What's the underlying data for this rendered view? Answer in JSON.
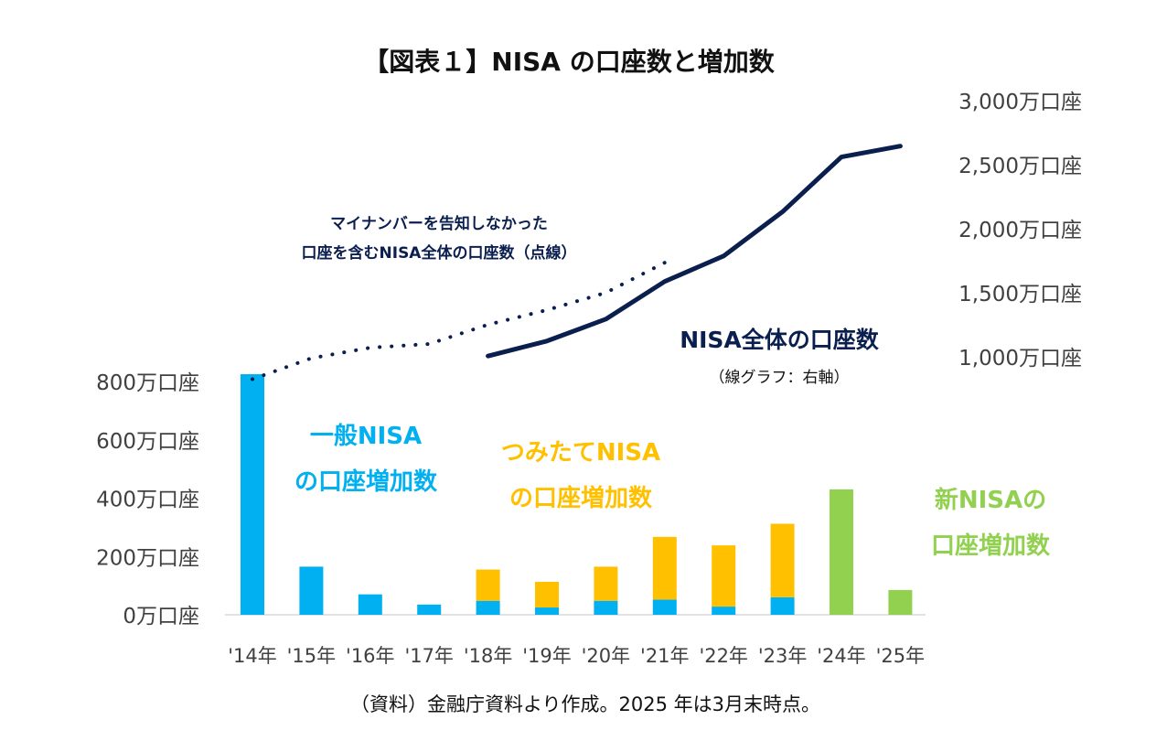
{
  "chart_data": {
    "type": "bar",
    "title": "【図表１】NISA の口座数と増加数",
    "categories": [
      "'14年",
      "'15年",
      "'16年",
      "'17年",
      "'18年",
      "'19年",
      "'20年",
      "'21年",
      "'22年",
      "'23年",
      "'24年",
      "'25年"
    ],
    "series": [
      {
        "name": "一般NISA の口座増加数",
        "color": "#00B0F0",
        "values": [
          825,
          165,
          70,
          35,
          48,
          25,
          48,
          52,
          28,
          60,
          null,
          null
        ]
      },
      {
        "name": "つみたてNISA の口座増加数",
        "color": "#FFC000",
        "values": [
          null,
          null,
          null,
          null,
          107,
          88,
          117,
          215,
          210,
          252,
          null,
          null
        ]
      },
      {
        "name": "新NISAの口座増加数",
        "color": "#92D050",
        "values": [
          null,
          null,
          null,
          null,
          null,
          null,
          null,
          null,
          null,
          null,
          430,
          85
        ]
      },
      {
        "name": "NISA全体の口座数",
        "type": "line",
        "axis": "right",
        "color": "#0B1F4F",
        "values": [
          null,
          null,
          null,
          null,
          1006,
          1123,
          1294,
          1588,
          1787,
          2132,
          2560,
          2645
        ]
      },
      {
        "name": "マイナンバーを告知しなかった口座を含むNISA全体の口座数（点線）",
        "type": "line",
        "style": "dotted",
        "axis": "right",
        "color": "#0B1F4F",
        "values": [
          825,
          989,
          1071,
          1100,
          1251,
          1365,
          1500,
          1735,
          null,
          null,
          null,
          null
        ]
      }
    ],
    "left_axis": {
      "ylim": [
        0,
        800
      ],
      "ticks": [
        0,
        200,
        400,
        600,
        800
      ],
      "unit": "万口座",
      "tick_labels": [
        "0万口座",
        "200万口座",
        "400万口座",
        "600万口座",
        "800万口座"
      ]
    },
    "right_axis": {
      "ylim": [
        1000,
        3000
      ],
      "ticks": [
        1000,
        1500,
        2000,
        2500,
        3000
      ],
      "unit": "万口座",
      "tick_labels": [
        "1,000万口座",
        "1,500万口座",
        "2,000万口座",
        "2,500万口座",
        "3,000万口座"
      ]
    },
    "annotations": {
      "dotted_line_label": [
        "マイナンバーを告知しなかった",
        "口座を含むNISA全体の口座数（点線）"
      ],
      "line_label": "NISA全体の口座数",
      "line_sublabel": "（線グラフ：右軸）",
      "general_label": [
        "一般NISA",
        "の口座増加数"
      ],
      "tsumitate_label": [
        "つみたてNISA",
        "の口座増加数"
      ],
      "new_label": [
        "新NISAの",
        "口座増加数"
      ]
    },
    "source": "（資料）金融庁資料より作成。2025 年は3月末時点。",
    "legend": "none",
    "grid": false
  }
}
